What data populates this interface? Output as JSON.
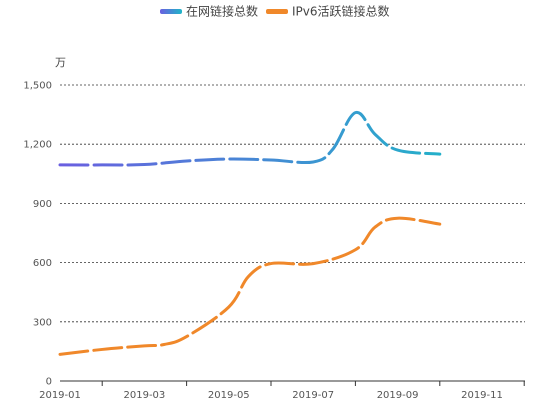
{
  "chart_data": {
    "type": "line",
    "title": "",
    "xlabel": "",
    "ylabel": "",
    "unit": "万",
    "x_ticks": [
      "2019-01",
      "2019-03",
      "2019-05",
      "2019-07",
      "2019-09",
      "2019-11"
    ],
    "y_ticks": [
      "0",
      "300",
      "600",
      "900",
      "1,200",
      "1,500"
    ],
    "xlim": [
      "2019-01",
      "2019-11"
    ],
    "ylim": [
      0,
      1500
    ],
    "grid": "horizontal dotted",
    "legend_position": "top-center",
    "series": [
      {
        "name": "在网链接总数",
        "color_start": "#6a5fe0",
        "color_end": "#1fb6c8",
        "line_style": "dashed",
        "points": [
          {
            "x": "2019-01",
            "y": 1095
          },
          {
            "x": "2019-02",
            "y": 1095
          },
          {
            "x": "2019-03",
            "y": 1097
          },
          {
            "x": "2019-04",
            "y": 1115
          },
          {
            "x": "2019-05",
            "y": 1125
          },
          {
            "x": "2019-06",
            "y": 1120
          },
          {
            "x": "2019-07",
            "y": 1110
          },
          {
            "x": "2019-07-15",
            "y": 1175
          },
          {
            "x": "2019-08",
            "y": 1360
          },
          {
            "x": "2019-08-15",
            "y": 1250
          },
          {
            "x": "2019-09",
            "y": 1170
          },
          {
            "x": "2019-10",
            "y": 1150
          }
        ]
      },
      {
        "name": "IPv6活跃链接总数",
        "color": "#f0882a",
        "line_style": "dashed",
        "points": [
          {
            "x": "2019-01",
            "y": 135
          },
          {
            "x": "2019-02",
            "y": 160
          },
          {
            "x": "2019-03",
            "y": 178
          },
          {
            "x": "2019-03-15",
            "y": 185
          },
          {
            "x": "2019-04",
            "y": 225
          },
          {
            "x": "2019-05",
            "y": 375
          },
          {
            "x": "2019-05-15",
            "y": 530
          },
          {
            "x": "2019-06",
            "y": 595
          },
          {
            "x": "2019-07",
            "y": 595
          },
          {
            "x": "2019-08",
            "y": 665
          },
          {
            "x": "2019-08-15",
            "y": 780
          },
          {
            "x": "2019-09",
            "y": 825
          },
          {
            "x": "2019-10",
            "y": 795
          }
        ]
      }
    ]
  }
}
